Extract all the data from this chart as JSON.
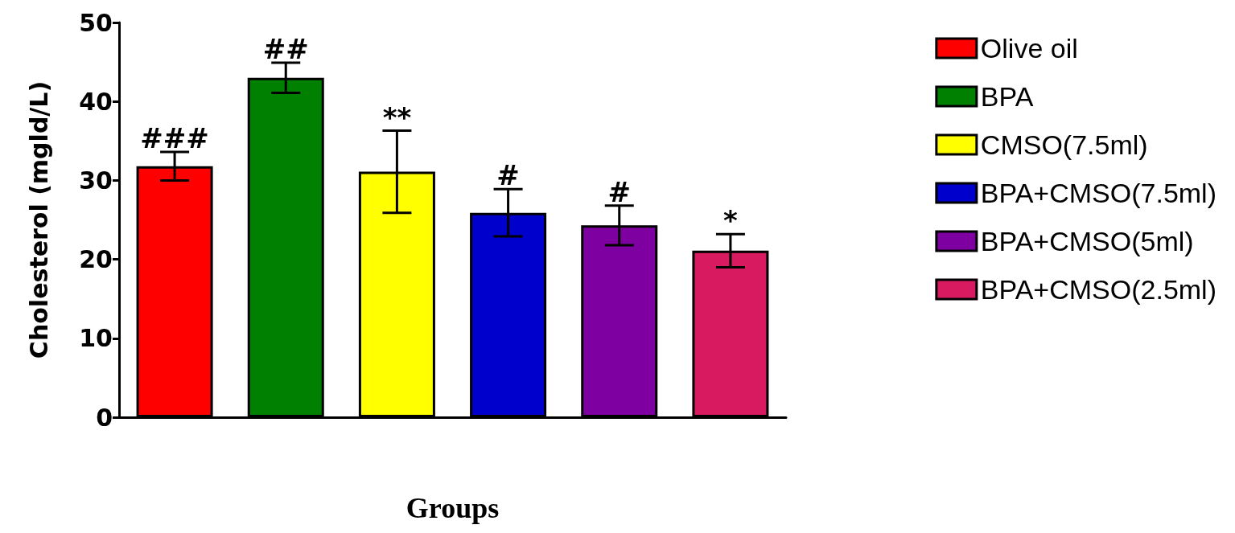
{
  "chart_data": {
    "type": "bar",
    "xlabel": "Groups",
    "ylabel": "Cholesterol (mgld/L)",
    "categories": [
      null,
      null,
      null,
      null,
      null,
      null
    ],
    "series": [
      {
        "name": "Olive oil",
        "color": "#ff0000",
        "values": [
          31.8,
          null,
          null,
          null,
          null,
          null
        ],
        "errors": [
          1.8,
          null,
          null,
          null,
          null,
          null
        ],
        "value_labels": [
          "###",
          null,
          null,
          null,
          null,
          null
        ]
      },
      {
        "name": "BPA",
        "color": "#008000",
        "values": [
          null,
          43.0,
          null,
          null,
          null,
          null
        ],
        "errors": [
          null,
          1.9,
          null,
          null,
          null,
          null
        ],
        "value_labels": [
          null,
          "##",
          null,
          null,
          null,
          null
        ]
      },
      {
        "name": "CMSO(7.5ml)",
        "color": "#ffff00",
        "values": [
          null,
          null,
          31.1,
          null,
          null,
          null
        ],
        "errors": [
          null,
          null,
          5.2,
          null,
          null,
          null
        ],
        "value_labels": [
          null,
          null,
          "**",
          null,
          null,
          null
        ]
      },
      {
        "name": "BPA+CMSO(7.5ml)",
        "color": "#0000cc",
        "values": [
          null,
          null,
          null,
          25.9,
          null,
          null
        ],
        "errors": [
          null,
          null,
          null,
          3.0,
          null,
          null
        ],
        "value_labels": [
          null,
          null,
          null,
          "#",
          null,
          null
        ]
      },
      {
        "name": "BPA+CMSO(5ml)",
        "color": "#7f00a0",
        "values": [
          null,
          null,
          null,
          null,
          24.3,
          null
        ],
        "errors": [
          null,
          null,
          null,
          null,
          2.5,
          null
        ],
        "value_labels": [
          null,
          null,
          null,
          null,
          "#",
          null
        ]
      },
      {
        "name": "BPA+CMSO(2.5ml)",
        "color": "#d81b60",
        "values": [
          null,
          null,
          null,
          null,
          null,
          21.1
        ],
        "errors": [
          null,
          null,
          null,
          null,
          null,
          2.1
        ],
        "value_labels": [
          null,
          null,
          null,
          null,
          null,
          "*"
        ]
      }
    ],
    "ylim": [
      0,
      50
    ],
    "yticks": [
      0,
      10,
      20,
      30,
      40,
      50
    ],
    "grid": false,
    "legend": "right",
    "tick_labels": "y"
  }
}
